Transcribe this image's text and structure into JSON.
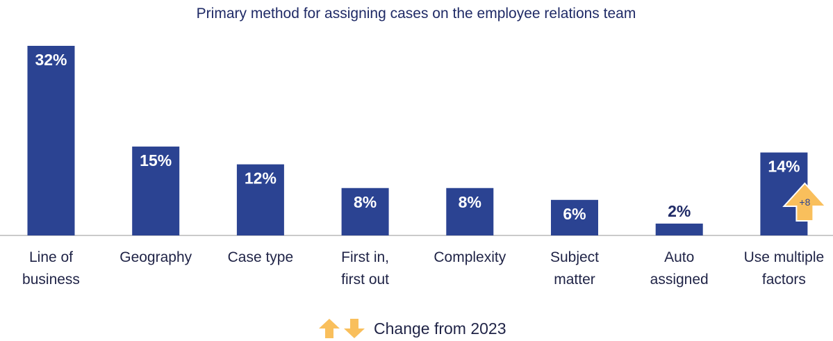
{
  "chart_data": {
    "type": "bar",
    "title": "Primary method for assigning cases on the employee relations team",
    "categories": [
      [
        "Line of",
        "business"
      ],
      [
        "Geography"
      ],
      [
        "Case type"
      ],
      [
        "First in,",
        "first out"
      ],
      [
        "Complexity"
      ],
      [
        "Subject",
        "matter"
      ],
      [
        "Auto",
        "assigned"
      ],
      [
        "Use multiple",
        "factors"
      ]
    ],
    "values": [
      32,
      15,
      12,
      8,
      8,
      6,
      2,
      14
    ],
    "value_labels": [
      "32%",
      "15%",
      "12%",
      "8%",
      "8%",
      "6%",
      "2%",
      "14%"
    ],
    "changes": [
      {
        "category_index": 7,
        "label": "+8",
        "direction": "up"
      }
    ],
    "ylim": [
      0,
      32
    ],
    "grid": false,
    "legend": {
      "text": "Change from 2023",
      "icons": [
        "arrow-up-icon",
        "arrow-down-icon"
      ]
    }
  },
  "colors": {
    "bar": "#2b4392",
    "title": "#1f2a66",
    "axis": "#b9b9b9",
    "label": "#1f2346",
    "value_on_bar": "#ffffff",
    "value_above_bar": "#1f2a66",
    "change_arrow": "#f9bf5c",
    "change_text": "#2b4392"
  }
}
